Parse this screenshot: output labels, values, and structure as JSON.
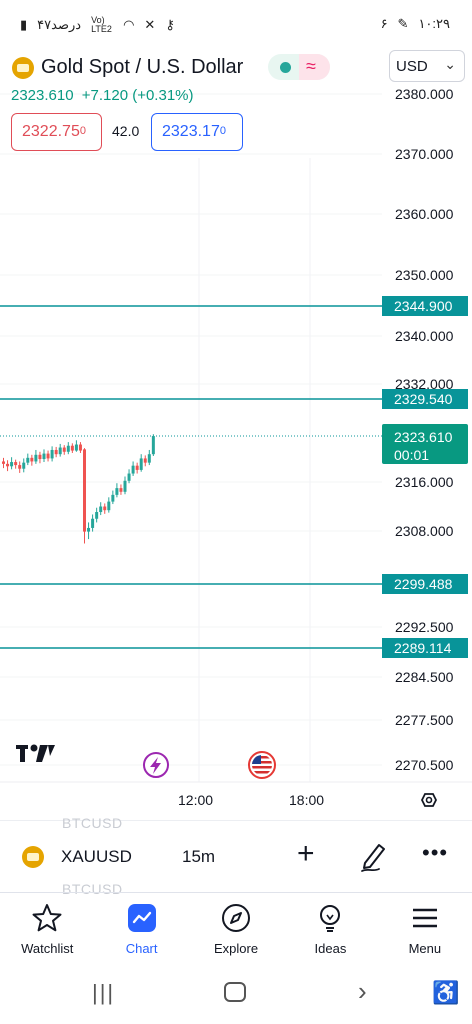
{
  "status_bar": {
    "battery_text": "۴۷درصد",
    "network_text": "Vo) LTE2",
    "time": "۱۰:۲۹",
    "notif_count": "۶"
  },
  "header": {
    "title": "Gold Spot / U.S. Dollar",
    "currency": "USD",
    "price": "2323.610",
    "change": "+7.120 (+0.31%)",
    "bid_main": "2322.75",
    "bid_sup": "0",
    "spread": "42.0",
    "ask_main": "2323.17",
    "ask_sup": "0"
  },
  "chart_data": {
    "type": "candlestick",
    "y_axis_labels": [
      "2380.000",
      "2370.000",
      "2360.000",
      "2350.000",
      "2340.000",
      "2332.000",
      "2316.000",
      "2308.000",
      "2292.500",
      "2284.500",
      "2277.500",
      "2270.500"
    ],
    "x_axis_labels": [
      "12:00",
      "18:00"
    ],
    "horizontal_lines": [
      {
        "value": "2344.900"
      },
      {
        "value": "2329.540"
      },
      {
        "value": "2299.488"
      },
      {
        "value": "2289.114"
      }
    ],
    "last_price": "2323.610",
    "countdown": "00:01",
    "colors": {
      "up": "#26a69a",
      "down": "#ef5350",
      "line": "#089499"
    },
    "candles": [
      {
        "o": 2319.4,
        "c": 2319.0,
        "h": 2320.0,
        "l": 2318.3
      },
      {
        "o": 2319.0,
        "c": 2318.6,
        "h": 2319.6,
        "l": 2317.8
      },
      {
        "o": 2318.6,
        "c": 2319.3,
        "h": 2320.1,
        "l": 2318.1
      },
      {
        "o": 2319.3,
        "c": 2318.8,
        "h": 2319.7,
        "l": 2318.2
      },
      {
        "o": 2318.8,
        "c": 2318.2,
        "h": 2319.4,
        "l": 2317.5
      },
      {
        "o": 2318.2,
        "c": 2319.2,
        "h": 2319.9,
        "l": 2317.6
      },
      {
        "o": 2319.2,
        "c": 2320.0,
        "h": 2320.7,
        "l": 2318.8
      },
      {
        "o": 2320.0,
        "c": 2319.4,
        "h": 2320.5,
        "l": 2318.7
      },
      {
        "o": 2319.4,
        "c": 2320.5,
        "h": 2321.3,
        "l": 2319.0
      },
      {
        "o": 2320.5,
        "c": 2319.8,
        "h": 2321.0,
        "l": 2319.1
      },
      {
        "o": 2319.8,
        "c": 2320.7,
        "h": 2321.4,
        "l": 2319.3
      },
      {
        "o": 2320.7,
        "c": 2319.9,
        "h": 2321.2,
        "l": 2319.4
      },
      {
        "o": 2319.9,
        "c": 2321.3,
        "h": 2321.9,
        "l": 2319.4
      },
      {
        "o": 2321.3,
        "c": 2320.6,
        "h": 2321.8,
        "l": 2320.1
      },
      {
        "o": 2320.6,
        "c": 2321.7,
        "h": 2322.3,
        "l": 2320.2
      },
      {
        "o": 2321.7,
        "c": 2321.0,
        "h": 2322.1,
        "l": 2320.5
      },
      {
        "o": 2321.0,
        "c": 2322.0,
        "h": 2322.6,
        "l": 2320.6
      },
      {
        "o": 2322.0,
        "c": 2321.2,
        "h": 2322.4,
        "l": 2320.8
      },
      {
        "o": 2321.2,
        "c": 2322.2,
        "h": 2322.9,
        "l": 2321.0
      },
      {
        "o": 2322.2,
        "c": 2321.2,
        "h": 2322.6,
        "l": 2320.8
      },
      {
        "o": 2321.4,
        "c": 2307.9,
        "h": 2321.6,
        "l": 2306.0
      },
      {
        "o": 2307.9,
        "c": 2308.5,
        "h": 2309.4,
        "l": 2306.7
      },
      {
        "o": 2308.5,
        "c": 2310.0,
        "h": 2310.7,
        "l": 2307.9
      },
      {
        "o": 2310.0,
        "c": 2311.1,
        "h": 2311.8,
        "l": 2309.4
      },
      {
        "o": 2311.1,
        "c": 2312.0,
        "h": 2312.7,
        "l": 2310.6
      },
      {
        "o": 2312.0,
        "c": 2311.4,
        "h": 2312.5,
        "l": 2310.8
      },
      {
        "o": 2311.4,
        "c": 2312.8,
        "h": 2313.5,
        "l": 2311.0
      },
      {
        "o": 2312.8,
        "c": 2313.9,
        "h": 2314.6,
        "l": 2312.4
      },
      {
        "o": 2313.9,
        "c": 2315.0,
        "h": 2315.8,
        "l": 2313.5
      },
      {
        "o": 2315.0,
        "c": 2314.4,
        "h": 2315.6,
        "l": 2313.9
      },
      {
        "o": 2314.4,
        "c": 2316.2,
        "h": 2316.9,
        "l": 2314.0
      },
      {
        "o": 2316.2,
        "c": 2317.4,
        "h": 2318.1,
        "l": 2315.8
      },
      {
        "o": 2317.4,
        "c": 2318.7,
        "h": 2319.4,
        "l": 2317.0
      },
      {
        "o": 2318.7,
        "c": 2318.0,
        "h": 2319.2,
        "l": 2317.4
      },
      {
        "o": 2318.0,
        "c": 2319.9,
        "h": 2320.6,
        "l": 2317.7
      },
      {
        "o": 2319.9,
        "c": 2319.2,
        "h": 2320.4,
        "l": 2318.6
      },
      {
        "o": 2319.2,
        "c": 2320.6,
        "h": 2321.3,
        "l": 2318.8
      },
      {
        "o": 2320.6,
        "c": 2323.6,
        "h": 2323.9,
        "l": 2320.3
      }
    ]
  },
  "symbol_bar": {
    "ghost_top": "BTCUSD",
    "ghost_bottom": "BTCUSD",
    "symbol": "XAUUSD",
    "interval": "15m"
  },
  "bottom_nav": {
    "items": [
      {
        "label": "Watchlist",
        "icon": "star-icon"
      },
      {
        "label": "Chart",
        "icon": "chart-icon"
      },
      {
        "label": "Explore",
        "icon": "compass-icon"
      },
      {
        "label": "Ideas",
        "icon": "lightbulb-icon"
      },
      {
        "label": "Menu",
        "icon": "menu-icon"
      }
    ]
  }
}
